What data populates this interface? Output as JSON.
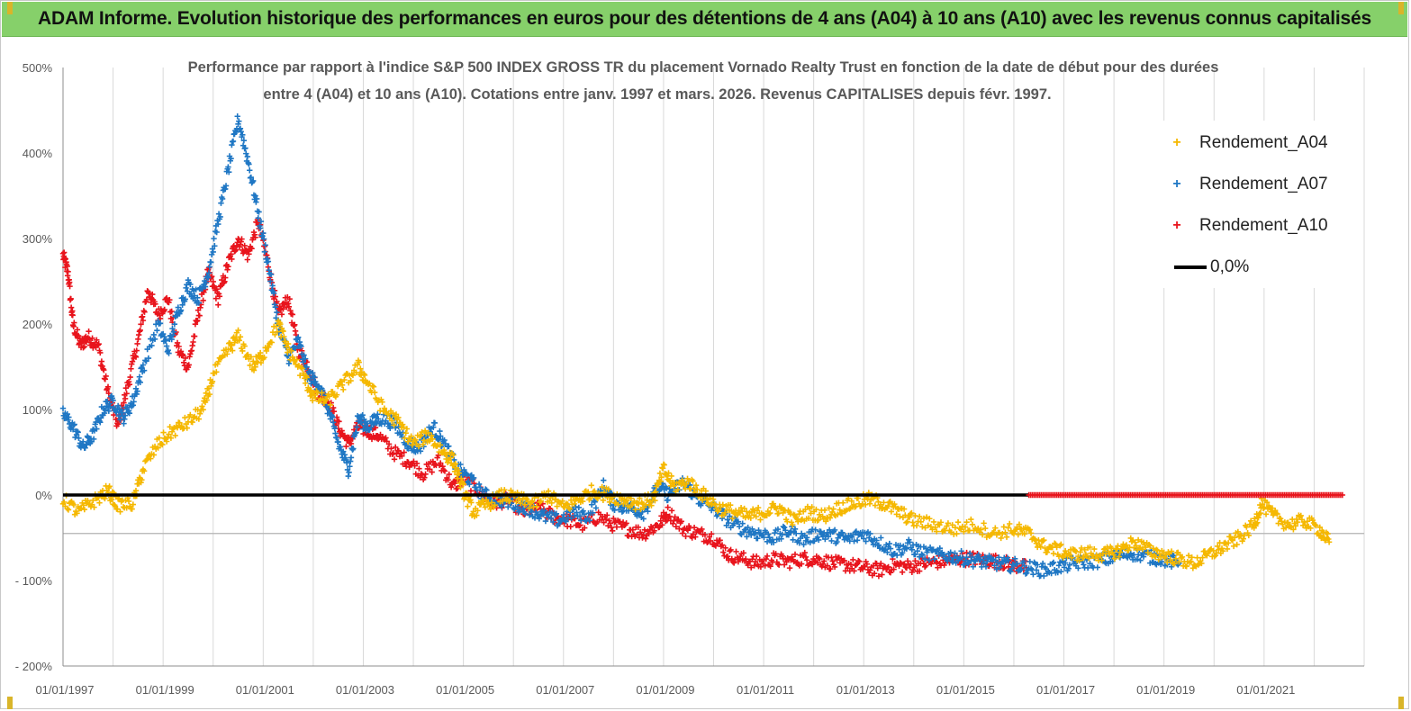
{
  "banner": {
    "title": "ADAM Informe. Evolution historique des performances en euros pour des détentions de 4 ans (A04) à 10 ans (A10) avec les revenus connus capitalisés"
  },
  "colors": {
    "banner_bg": "#86d06a",
    "A04": "#f5b800",
    "A07": "#1f77c4",
    "A10": "#e8141c",
    "zero_line": "#000000",
    "grid": "#d9d9d9"
  },
  "chart_data": {
    "type": "scatter",
    "title_line1": "Performance par rapport à l'indice S&P 500 INDEX GROSS TR  du placement Vornado Realty Trust en fonction de la date de début pour des durées",
    "title_line2": "entre 4 (A04) et 10 ans (A10). Cotations entre janv. 1997 et mars. 2026. Revenus CAPITALISES depuis févr. 1997.",
    "y_axis": {
      "min": -200,
      "max": 500,
      "step": 100,
      "tick_labels": [
        "- 200%",
        "- 100%",
        "0%",
        "100%",
        "200%",
        "300%",
        "400%",
        "500%"
      ]
    },
    "x_axis": {
      "start_year": 1997,
      "end_year": 2023,
      "tick_years": [
        1997,
        1999,
        2001,
        2003,
        2005,
        2007,
        2009,
        2011,
        2013,
        2015,
        2017,
        2019,
        2021
      ],
      "tick_labels": [
        "01/01/1997",
        "01/01/1999",
        "01/01/2001",
        "01/01/2003",
        "01/01/2005",
        "01/01/2007",
        "01/01/2009",
        "01/01/2011",
        "01/01/2013",
        "01/01/2015",
        "01/01/2017",
        "01/01/2019",
        "01/01/2021"
      ]
    },
    "legend_position": "top-right",
    "series": [
      {
        "name": "Rendement_A04",
        "key": "A04",
        "points": [
          [
            1997.0,
            -5
          ],
          [
            1997.3,
            -20
          ],
          [
            1997.6,
            -8
          ],
          [
            1997.9,
            5
          ],
          [
            1998.1,
            -12
          ],
          [
            1998.4,
            -10
          ],
          [
            1998.6,
            30
          ],
          [
            1998.9,
            60
          ],
          [
            1999.2,
            75
          ],
          [
            1999.5,
            85
          ],
          [
            1999.8,
            100
          ],
          [
            2000.0,
            140
          ],
          [
            2000.3,
            170
          ],
          [
            2000.5,
            185
          ],
          [
            2000.8,
            150
          ],
          [
            2001.0,
            165
          ],
          [
            2001.3,
            200
          ],
          [
            2001.5,
            170
          ],
          [
            2001.8,
            140
          ],
          [
            2002.0,
            115
          ],
          [
            2002.3,
            110
          ],
          [
            2002.6,
            130
          ],
          [
            2002.9,
            150
          ],
          [
            2003.1,
            130
          ],
          [
            2003.4,
            100
          ],
          [
            2003.7,
            85
          ],
          [
            2004.0,
            60
          ],
          [
            2004.3,
            70
          ],
          [
            2004.6,
            50
          ],
          [
            2004.8,
            40
          ],
          [
            2005.0,
            5
          ],
          [
            2005.2,
            -20
          ],
          [
            2005.5,
            -10
          ],
          [
            2005.8,
            0
          ],
          [
            2006.1,
            -5
          ],
          [
            2006.4,
            -10
          ],
          [
            2006.7,
            0
          ],
          [
            2007.0,
            -15
          ],
          [
            2007.3,
            -5
          ],
          [
            2007.6,
            5
          ],
          [
            2007.9,
            0
          ],
          [
            2008.2,
            -5
          ],
          [
            2008.5,
            -10
          ],
          [
            2008.8,
            -5
          ],
          [
            2009.0,
            30
          ],
          [
            2009.2,
            10
          ],
          [
            2009.5,
            15
          ],
          [
            2009.8,
            0
          ],
          [
            2010.1,
            -15
          ],
          [
            2010.4,
            -20
          ],
          [
            2010.7,
            -25
          ],
          [
            2011.0,
            -20
          ],
          [
            2011.3,
            -15
          ],
          [
            2011.6,
            -30
          ],
          [
            2011.9,
            -20
          ],
          [
            2012.2,
            -25
          ],
          [
            2012.5,
            -15
          ],
          [
            2012.8,
            -10
          ],
          [
            2013.1,
            -5
          ],
          [
            2013.4,
            -10
          ],
          [
            2013.7,
            -20
          ],
          [
            2014.0,
            -30
          ],
          [
            2014.4,
            -35
          ],
          [
            2014.8,
            -40
          ],
          [
            2015.2,
            -35
          ],
          [
            2015.6,
            -45
          ],
          [
            2016.0,
            -40
          ],
          [
            2016.3,
            -45
          ],
          [
            2016.6,
            -60
          ],
          [
            2016.9,
            -65
          ],
          [
            2017.2,
            -70
          ],
          [
            2017.5,
            -68
          ],
          [
            2017.8,
            -70
          ],
          [
            2018.1,
            -65
          ],
          [
            2018.4,
            -55
          ],
          [
            2018.7,
            -65
          ],
          [
            2019.0,
            -70
          ],
          [
            2019.3,
            -75
          ],
          [
            2019.6,
            -80
          ],
          [
            2019.9,
            -70
          ],
          [
            2020.2,
            -60
          ],
          [
            2020.5,
            -50
          ],
          [
            2020.8,
            -35
          ],
          [
            2020.95,
            -10
          ],
          [
            2021.2,
            -25
          ],
          [
            2021.5,
            -35
          ],
          [
            2021.8,
            -30
          ],
          [
            2022.1,
            -40
          ],
          [
            2022.3,
            -55
          ]
        ]
      },
      {
        "name": "Rendement_A07",
        "key": "A07",
        "points": [
          [
            1997.0,
            95
          ],
          [
            1997.2,
            80
          ],
          [
            1997.4,
            55
          ],
          [
            1997.6,
            70
          ],
          [
            1997.8,
            100
          ],
          [
            1998.0,
            110
          ],
          [
            1998.2,
            90
          ],
          [
            1998.4,
            110
          ],
          [
            1998.6,
            150
          ],
          [
            1998.9,
            200
          ],
          [
            1999.1,
            170
          ],
          [
            1999.3,
            215
          ],
          [
            1999.5,
            245
          ],
          [
            1999.7,
            230
          ],
          [
            1999.9,
            260
          ],
          [
            2000.1,
            320
          ],
          [
            2000.3,
            380
          ],
          [
            2000.5,
            440
          ],
          [
            2000.7,
            390
          ],
          [
            2000.9,
            330
          ],
          [
            2001.1,
            270
          ],
          [
            2001.3,
            200
          ],
          [
            2001.5,
            160
          ],
          [
            2001.7,
            180
          ],
          [
            2001.9,
            140
          ],
          [
            2002.1,
            130
          ],
          [
            2002.3,
            100
          ],
          [
            2002.5,
            60
          ],
          [
            2002.7,
            30
          ],
          [
            2002.9,
            90
          ],
          [
            2003.1,
            80
          ],
          [
            2003.3,
            90
          ],
          [
            2003.6,
            85
          ],
          [
            2003.9,
            60
          ],
          [
            2004.1,
            55
          ],
          [
            2004.4,
            80
          ],
          [
            2004.6,
            60
          ],
          [
            2004.9,
            30
          ],
          [
            2005.1,
            20
          ],
          [
            2005.4,
            0
          ],
          [
            2005.7,
            -5
          ],
          [
            2006.0,
            -10
          ],
          [
            2006.3,
            -15
          ],
          [
            2006.6,
            -25
          ],
          [
            2006.9,
            -30
          ],
          [
            2007.2,
            -20
          ],
          [
            2007.5,
            -25
          ],
          [
            2007.8,
            10
          ],
          [
            2008.0,
            -10
          ],
          [
            2008.3,
            -15
          ],
          [
            2008.6,
            -20
          ],
          [
            2008.9,
            10
          ],
          [
            2009.1,
            0
          ],
          [
            2009.4,
            15
          ],
          [
            2009.7,
            -5
          ],
          [
            2010.0,
            -15
          ],
          [
            2010.3,
            -30
          ],
          [
            2010.6,
            -40
          ],
          [
            2010.9,
            -45
          ],
          [
            2011.2,
            -50
          ],
          [
            2011.5,
            -42
          ],
          [
            2011.8,
            -52
          ],
          [
            2012.1,
            -45
          ],
          [
            2012.4,
            -48
          ],
          [
            2012.7,
            -52
          ],
          [
            2013.0,
            -45
          ],
          [
            2013.3,
            -55
          ],
          [
            2013.6,
            -65
          ],
          [
            2013.9,
            -60
          ],
          [
            2014.2,
            -68
          ],
          [
            2014.5,
            -70
          ],
          [
            2014.8,
            -72
          ],
          [
            2015.1,
            -75
          ],
          [
            2015.4,
            -78
          ],
          [
            2015.7,
            -80
          ],
          [
            2016.0,
            -82
          ],
          [
            2016.3,
            -85
          ],
          [
            2016.6,
            -88
          ],
          [
            2016.9,
            -84
          ],
          [
            2017.2,
            -80
          ],
          [
            2017.5,
            -78
          ],
          [
            2017.8,
            -76
          ],
          [
            2018.1,
            -70
          ],
          [
            2018.4,
            -68
          ],
          [
            2018.7,
            -72
          ],
          [
            2019.0,
            -75
          ],
          [
            2019.3,
            -80
          ]
        ]
      },
      {
        "name": "Rendement_A10",
        "key": "A10",
        "points": [
          [
            1997.0,
            280
          ],
          [
            1997.1,
            260
          ],
          [
            1997.2,
            200
          ],
          [
            1997.35,
            175
          ],
          [
            1997.5,
            185
          ],
          [
            1997.7,
            175
          ],
          [
            1997.9,
            120
          ],
          [
            1998.1,
            80
          ],
          [
            1998.3,
            130
          ],
          [
            1998.5,
            180
          ],
          [
            1998.7,
            240
          ],
          [
            1998.9,
            210
          ],
          [
            1999.1,
            230
          ],
          [
            1999.3,
            170
          ],
          [
            1999.5,
            150
          ],
          [
            1999.7,
            210
          ],
          [
            1999.9,
            260
          ],
          [
            2000.1,
            230
          ],
          [
            2000.3,
            270
          ],
          [
            2000.5,
            300
          ],
          [
            2000.7,
            280
          ],
          [
            2000.9,
            320
          ],
          [
            2001.1,
            270
          ],
          [
            2001.3,
            210
          ],
          [
            2001.5,
            230
          ],
          [
            2001.7,
            170
          ],
          [
            2001.9,
            150
          ],
          [
            2002.1,
            120
          ],
          [
            2002.3,
            110
          ],
          [
            2002.5,
            80
          ],
          [
            2002.7,
            60
          ],
          [
            2002.9,
            80
          ],
          [
            2003.1,
            75
          ],
          [
            2003.3,
            70
          ],
          [
            2003.6,
            50
          ],
          [
            2003.9,
            40
          ],
          [
            2004.2,
            25
          ],
          [
            2004.5,
            40
          ],
          [
            2004.8,
            10
          ],
          [
            2005.0,
            20
          ],
          [
            2005.3,
            5
          ],
          [
            2005.6,
            -10
          ],
          [
            2005.9,
            -5
          ],
          [
            2006.2,
            -20
          ],
          [
            2006.5,
            -15
          ],
          [
            2006.8,
            -25
          ],
          [
            2007.1,
            -30
          ],
          [
            2007.4,
            -35
          ],
          [
            2007.7,
            -25
          ],
          [
            2008.0,
            -35
          ],
          [
            2008.3,
            -40
          ],
          [
            2008.6,
            -45
          ],
          [
            2008.9,
            -35
          ],
          [
            2009.1,
            -20
          ],
          [
            2009.4,
            -40
          ],
          [
            2009.7,
            -45
          ],
          [
            2010.0,
            -50
          ],
          [
            2010.3,
            -70
          ],
          [
            2010.6,
            -75
          ],
          [
            2010.9,
            -80
          ],
          [
            2011.2,
            -75
          ],
          [
            2011.5,
            -78
          ],
          [
            2011.8,
            -74
          ],
          [
            2012.1,
            -76
          ],
          [
            2012.4,
            -80
          ],
          [
            2012.7,
            -82
          ],
          [
            2013.0,
            -85
          ],
          [
            2013.3,
            -88
          ],
          [
            2013.6,
            -82
          ],
          [
            2013.9,
            -84
          ],
          [
            2014.2,
            -80
          ],
          [
            2014.5,
            -78
          ],
          [
            2014.8,
            -76
          ],
          [
            2015.1,
            -74
          ],
          [
            2015.4,
            -76
          ],
          [
            2015.7,
            -78
          ],
          [
            2016.0,
            -82
          ],
          [
            2016.25,
            -85
          ]
        ]
      },
      {
        "name": "0,0%",
        "key": "zero_line",
        "points": [
          [
            1997.0,
            0
          ],
          [
            2016.3,
            0
          ]
        ]
      }
    ],
    "red_zero_tail": {
      "from": 2016.3,
      "to": 2022.6,
      "value": 0
    },
    "gray_reference_level": -45
  },
  "legend": {
    "items": [
      {
        "label": "Rendement_A04",
        "key": "A04"
      },
      {
        "label": "Rendement_A07",
        "key": "A07"
      },
      {
        "label": "Rendement_A10",
        "key": "A10"
      },
      {
        "label": "0,0%",
        "key": "zero_line"
      }
    ]
  }
}
